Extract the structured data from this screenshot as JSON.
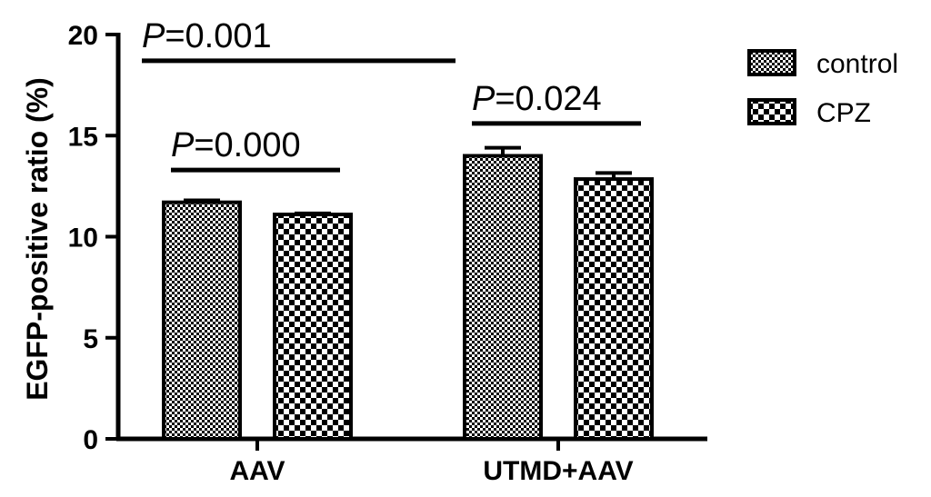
{
  "chart_data": {
    "type": "bar",
    "title": "",
    "xlabel": "",
    "ylabel": "EGFP-positive ratio (%)",
    "ylim": [
      0,
      20
    ],
    "yticks": [
      "0",
      "5",
      "10",
      "15",
      "20"
    ],
    "categories": [
      "AAV",
      "UTMD+AAV"
    ],
    "series": [
      {
        "name": "control",
        "values": [
          11.7,
          14.0
        ],
        "errors": [
          0.1,
          0.4
        ],
        "pattern": "fine-checker"
      },
      {
        "name": "CPZ",
        "values": [
          11.1,
          12.85
        ],
        "errors": [
          0.05,
          0.3
        ],
        "pattern": "coarse-checker"
      }
    ],
    "legend_position": "top-right",
    "grid": false,
    "annotations": [
      {
        "label": "P=0.000",
        "p": "P",
        "rest": "=0.000",
        "y": 13.3,
        "from": [
          0,
          0
        ],
        "to": [
          0,
          1
        ]
      },
      {
        "label": "P=0.024",
        "p": "P",
        "rest": "=0.024",
        "y": 15.6,
        "from": [
          1,
          0
        ],
        "to": [
          1,
          1
        ]
      },
      {
        "label": "P=0.001",
        "p": "P",
        "rest": "=0.001",
        "y": 18.7,
        "from": [
          0,
          0
        ],
        "to": [
          1,
          0
        ]
      }
    ]
  }
}
